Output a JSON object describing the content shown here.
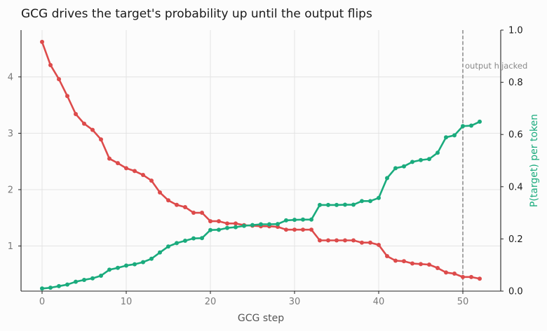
{
  "chart_data": {
    "type": "line",
    "title": "GCG drives the target's probability up until the output flips",
    "xlabel": "GCG step",
    "ylabel_left": "",
    "ylabel_right": "P(target) per token",
    "xlim": [
      -2.5,
      54.5
    ],
    "ylim_left": [
      0.2,
      4.83
    ],
    "ylim_right": [
      0,
      1
    ],
    "xticks": [
      0,
      10,
      20,
      30,
      40,
      50
    ],
    "yticks_left": [
      1,
      2,
      3,
      4
    ],
    "yticks_right": [
      "0.0",
      "0.2",
      "0.4",
      "0.6",
      "0.8",
      "1.0"
    ],
    "grid": true,
    "colors": {
      "loss": "#dd4b4b",
      "prob": "#1aab7d",
      "vline": "#888888",
      "grid": "#e3e3e3",
      "axis": "#222222"
    },
    "annotation": {
      "x": 50,
      "text": "output hijacked"
    },
    "series": [
      {
        "axis": "left",
        "x": [
          0,
          1,
          2,
          3,
          4,
          5,
          6,
          7,
          8,
          9,
          10,
          11,
          12,
          13,
          14,
          15,
          16,
          17,
          18,
          19,
          20,
          21,
          22,
          23,
          24,
          25,
          26,
          27,
          28,
          29,
          30,
          31,
          32,
          33,
          34,
          35,
          36,
          37,
          38,
          39,
          40,
          41,
          42,
          43,
          44,
          45,
          46,
          47,
          48,
          49,
          50,
          51,
          52
        ],
        "values": [
          4.62,
          4.21,
          3.96,
          3.66,
          3.34,
          3.17,
          3.06,
          2.89,
          2.55,
          2.47,
          2.38,
          2.33,
          2.26,
          2.16,
          1.95,
          1.81,
          1.73,
          1.69,
          1.59,
          1.59,
          1.44,
          1.44,
          1.4,
          1.4,
          1.37,
          1.36,
          1.35,
          1.35,
          1.34,
          1.29,
          1.29,
          1.29,
          1.29,
          1.1,
          1.1,
          1.1,
          1.1,
          1.1,
          1.06,
          1.06,
          1.02,
          0.82,
          0.74,
          0.73,
          0.69,
          0.68,
          0.67,
          0.61,
          0.53,
          0.51,
          0.45,
          0.45,
          0.42
        ]
      },
      {
        "axis": "right",
        "x": [
          0,
          1,
          2,
          3,
          4,
          5,
          6,
          7,
          8,
          9,
          10,
          11,
          12,
          13,
          14,
          15,
          16,
          17,
          18,
          19,
          20,
          21,
          22,
          23,
          24,
          25,
          26,
          27,
          28,
          29,
          30,
          31,
          32,
          33,
          34,
          35,
          36,
          37,
          38,
          39,
          40,
          41,
          42,
          43,
          44,
          45,
          46,
          47,
          48,
          49,
          50,
          51,
          52
        ],
        "values": [
          0.01,
          0.013,
          0.019,
          0.025,
          0.036,
          0.043,
          0.049,
          0.059,
          0.082,
          0.089,
          0.098,
          0.103,
          0.111,
          0.124,
          0.148,
          0.171,
          0.184,
          0.193,
          0.202,
          0.203,
          0.234,
          0.235,
          0.242,
          0.245,
          0.25,
          0.253,
          0.256,
          0.256,
          0.257,
          0.271,
          0.273,
          0.274,
          0.274,
          0.33,
          0.33,
          0.33,
          0.331,
          0.331,
          0.345,
          0.345,
          0.357,
          0.433,
          0.471,
          0.478,
          0.495,
          0.502,
          0.506,
          0.53,
          0.589,
          0.597,
          0.632,
          0.634,
          0.649
        ]
      }
    ]
  }
}
